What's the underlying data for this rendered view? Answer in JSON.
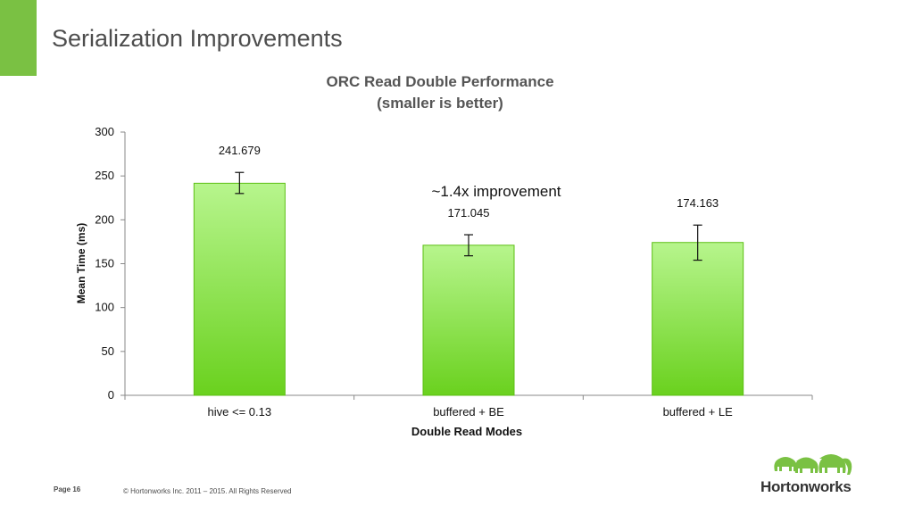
{
  "slide": {
    "title": "Serialization Improvements",
    "accent_color": "#7ac143"
  },
  "footer": {
    "page_label": "Page 16",
    "copyright": "© Hortonworks Inc. 2011 – 2015. All Rights Reserved"
  },
  "logo": {
    "text": "Hortonworks",
    "icon": "elephant-herd-icon"
  },
  "chart_data": {
    "type": "bar",
    "title": "ORC Read Double Performance",
    "subtitle": "(smaller is better)",
    "xlabel": "Double Read Modes",
    "ylabel": "Mean Time (ms)",
    "ylim": [
      0,
      300
    ],
    "yticks": [
      0,
      50,
      100,
      150,
      200,
      250,
      300
    ],
    "categories": [
      "hive <= 0.13",
      "buffered + BE",
      "buffered + LE"
    ],
    "values": [
      241.679,
      171.045,
      174.163
    ],
    "value_labels": [
      "241.679",
      "171.045",
      "174.163"
    ],
    "error_low": [
      230,
      159,
      154
    ],
    "error_high": [
      254,
      183,
      194
    ],
    "annotation": "~1.4x improvement",
    "bar_color_top": "#b7f58d",
    "bar_color_bottom": "#6ad11e",
    "grid": false,
    "legend": "none"
  }
}
